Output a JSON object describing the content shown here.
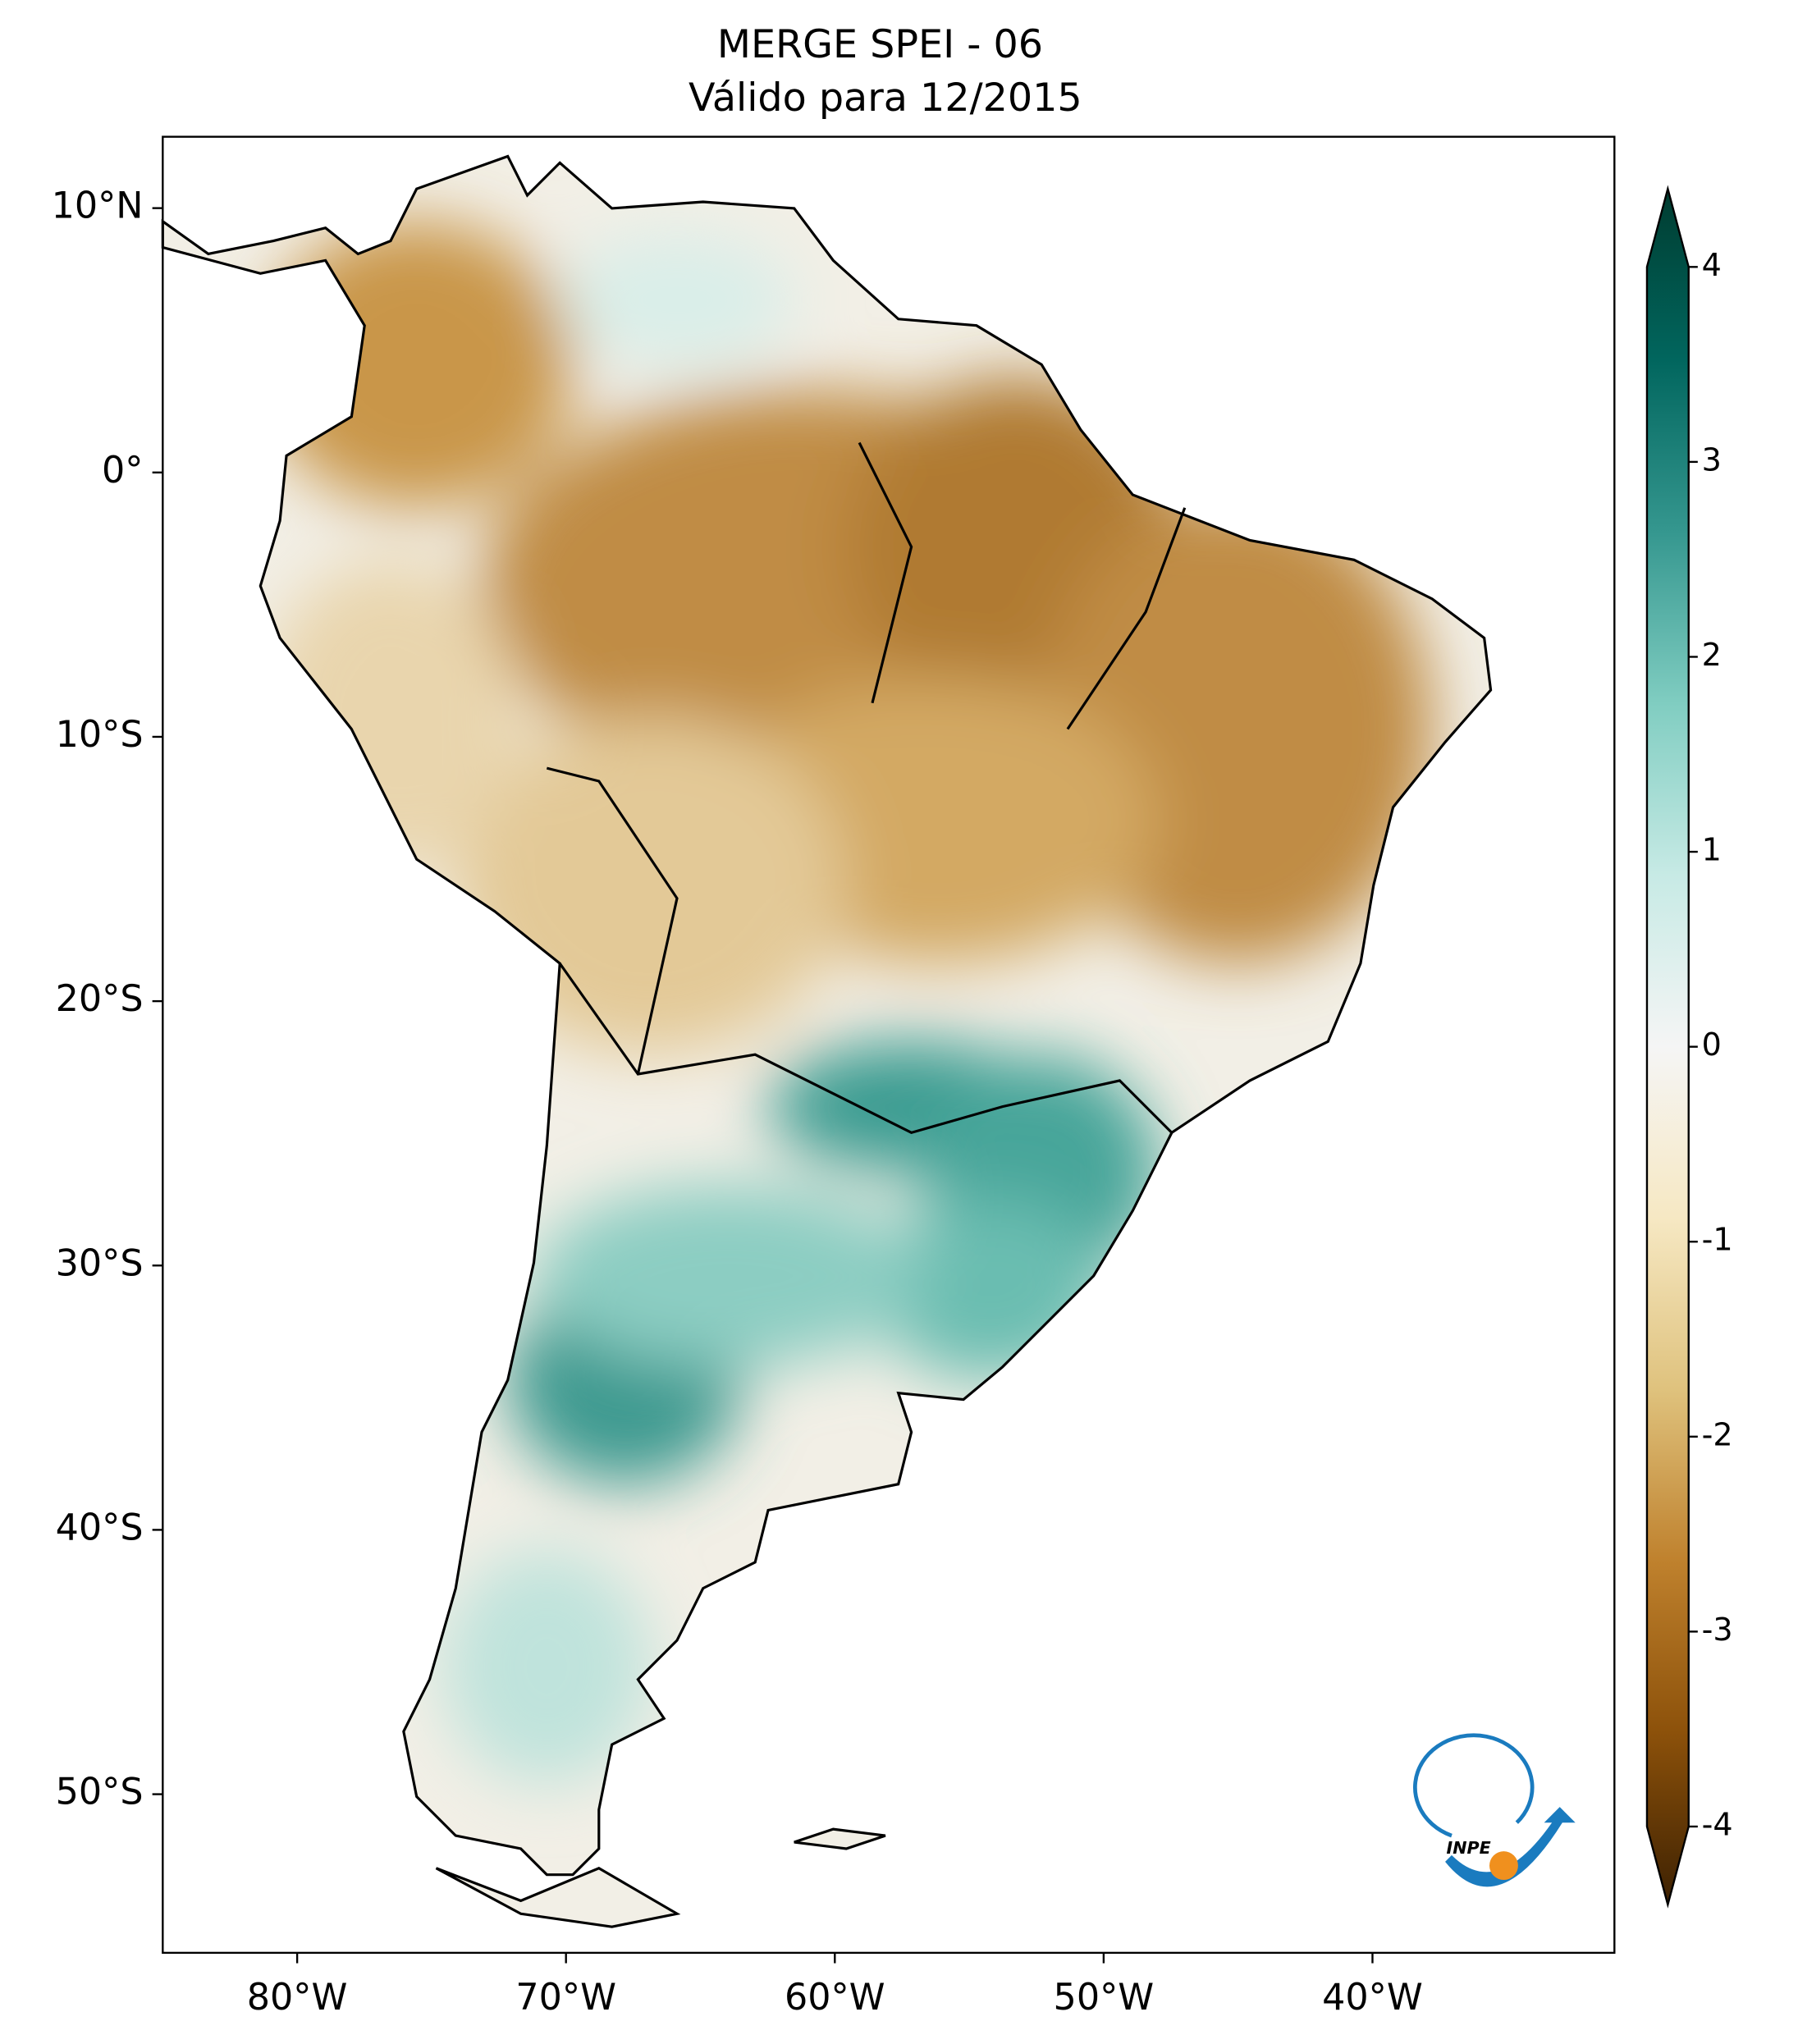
{
  "title": [
    "MERGE   SPEI - 06",
    "Válido para 12/2015"
  ],
  "map": {
    "xlim": [
      -85,
      -31
    ],
    "ylim": [
      -56,
      12.7
    ],
    "xticks": [
      {
        "value": -80,
        "label": "80°W"
      },
      {
        "value": -70,
        "label": "70°W"
      },
      {
        "value": -60,
        "label": "60°W"
      },
      {
        "value": -50,
        "label": "50°W"
      },
      {
        "value": -40,
        "label": "40°W"
      }
    ],
    "yticks": [
      {
        "value": 10,
        "label": "10°N"
      },
      {
        "value": 0,
        "label": "0°"
      },
      {
        "value": -10,
        "label": "10°S"
      },
      {
        "value": -20,
        "label": "20°S"
      },
      {
        "value": -30,
        "label": "30°S"
      },
      {
        "value": -40,
        "label": "40°S"
      },
      {
        "value": -50,
        "label": "50°S"
      }
    ]
  },
  "colorbar": {
    "lim": [
      -4,
      4
    ],
    "ticks": [
      4,
      3,
      2,
      1,
      0,
      -1,
      -2,
      -3,
      -4
    ],
    "colors": [
      "#3d2102",
      "#8c510a",
      "#bf812d",
      "#dfc27d",
      "#f6e8c3",
      "#f5f5f5",
      "#c7eae5",
      "#80cdc1",
      "#35978f",
      "#01665e",
      "#003c30"
    ]
  },
  "logo": "INPE"
}
